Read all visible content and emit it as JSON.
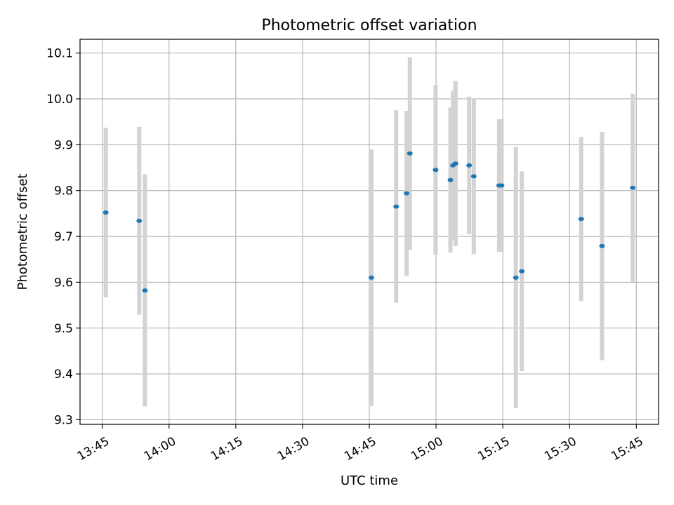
{
  "chart_data": {
    "type": "scatter",
    "title": "Photometric offset variation",
    "xlabel": "UTC time",
    "ylabel": "Photometric offset",
    "x_tick_labels": [
      "13:45",
      "14:00",
      "14:15",
      "14:30",
      "14:45",
      "15:00",
      "15:15",
      "15:30",
      "15:45"
    ],
    "x_ticks": [
      "13:45",
      "14:00",
      "14:15",
      "14:30",
      "14:45",
      "15:00",
      "15:15",
      "15:30",
      "15:45"
    ],
    "y_ticks": [
      9.3,
      9.4,
      9.5,
      9.6,
      9.7,
      9.8,
      9.9,
      10.0,
      10.1
    ],
    "y_tick_labels": [
      "9.3",
      "9.4",
      "9.5",
      "9.6",
      "9.7",
      "9.8",
      "9.9",
      "10.0",
      "10.1"
    ],
    "xlim": [
      "13:40",
      "15:50"
    ],
    "ylim": [
      9.29,
      10.13
    ],
    "grid": true,
    "series": [
      {
        "marker_color": "#1f77b4",
        "errorbar_color": "#d3d3d3",
        "points": [
          {
            "x": "13:45:47",
            "y": 9.752,
            "yerr": 0.185
          },
          {
            "x": "13:53:18",
            "y": 9.734,
            "yerr": 0.205
          },
          {
            "x": "13:54:35",
            "y": 9.582,
            "yerr": 0.253
          },
          {
            "x": "14:45:28",
            "y": 9.61,
            "yerr": 0.28
          },
          {
            "x": "14:51:02",
            "y": 9.765,
            "yerr": 0.21
          },
          {
            "x": "14:53:23",
            "y": 9.794,
            "yerr": 0.18
          },
          {
            "x": "14:54:07",
            "y": 9.881,
            "yerr": 0.21
          },
          {
            "x": "14:59:54",
            "y": 9.845,
            "yerr": 0.185
          },
          {
            "x": "15:03:14",
            "y": 9.823,
            "yerr": 0.158
          },
          {
            "x": "15:03:48",
            "y": 9.855,
            "yerr": 0.163
          },
          {
            "x": "15:04:23",
            "y": 9.859,
            "yerr": 0.18
          },
          {
            "x": "15:07:26",
            "y": 9.855,
            "yerr": 0.15
          },
          {
            "x": "15:08:29",
            "y": 9.831,
            "yerr": 0.17
          },
          {
            "x": "15:14:10",
            "y": 9.811,
            "yerr": 0.145
          },
          {
            "x": "15:14:44",
            "y": 9.811,
            "yerr": 0.145
          },
          {
            "x": "15:17:56",
            "y": 9.61,
            "yerr": 0.285
          },
          {
            "x": "15:19:16",
            "y": 9.624,
            "yerr": 0.218
          },
          {
            "x": "15:32:37",
            "y": 9.738,
            "yerr": 0.179
          },
          {
            "x": "15:37:18",
            "y": 9.679,
            "yerr": 0.249
          },
          {
            "x": "15:44:12",
            "y": 9.806,
            "yerr": 0.205
          }
        ]
      }
    ]
  }
}
